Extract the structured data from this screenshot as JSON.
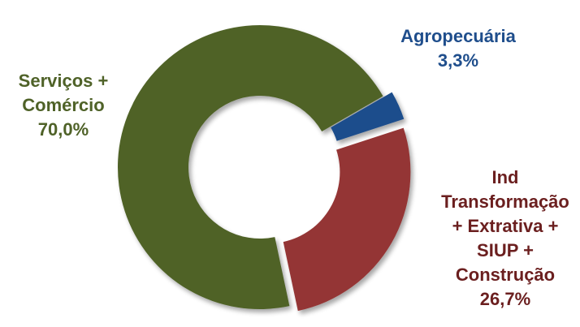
{
  "chart_data": {
    "type": "pie",
    "variant": "donut",
    "title": "",
    "slices": [
      {
        "id": "agro",
        "label_lines": [
          "Agropecuária"
        ],
        "value_label": "3,3%",
        "value": 3.3,
        "color": "#1F4E8C",
        "text_color": "#1F4E8C",
        "exploded": true
      },
      {
        "id": "industria",
        "label_lines": [
          "Ind",
          "Transformação",
          "+ Extrativa +",
          "SIUP +",
          "Construção"
        ],
        "value_label": "26,7%",
        "value": 26.7,
        "color": "#943634",
        "text_color": "#6B1F1F",
        "exploded": true
      },
      {
        "id": "servicos",
        "label_lines": [
          "Serviços +",
          "Comércio"
        ],
        "value_label": "70,0%",
        "value": 70.0,
        "color": "#4F6228",
        "text_color": "#4F6228",
        "exploded": false
      }
    ],
    "legend": "none"
  }
}
